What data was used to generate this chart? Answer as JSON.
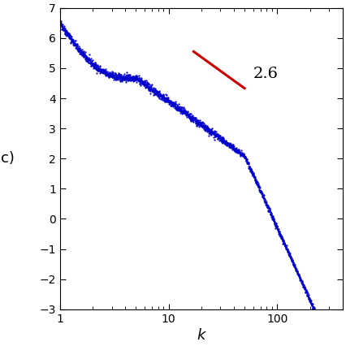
{
  "title": "",
  "xlabel": "k",
  "ylabel": "c)",
  "xlim": [
    1,
    400
  ],
  "ylim": [
    -3,
    7
  ],
  "yticks": [
    -3,
    -2,
    -1,
    0,
    1,
    2,
    3,
    4,
    5,
    6,
    7
  ],
  "slope": -2.6,
  "slope_label": "2.6",
  "ref_line_x": [
    17,
    50
  ],
  "ref_line_y_start": 5.55,
  "line_color": "#cc0000",
  "dot_color": "#0000cc",
  "background": "#ffffff",
  "figsize": [
    4.26,
    4.26
  ],
  "dpi": 100
}
